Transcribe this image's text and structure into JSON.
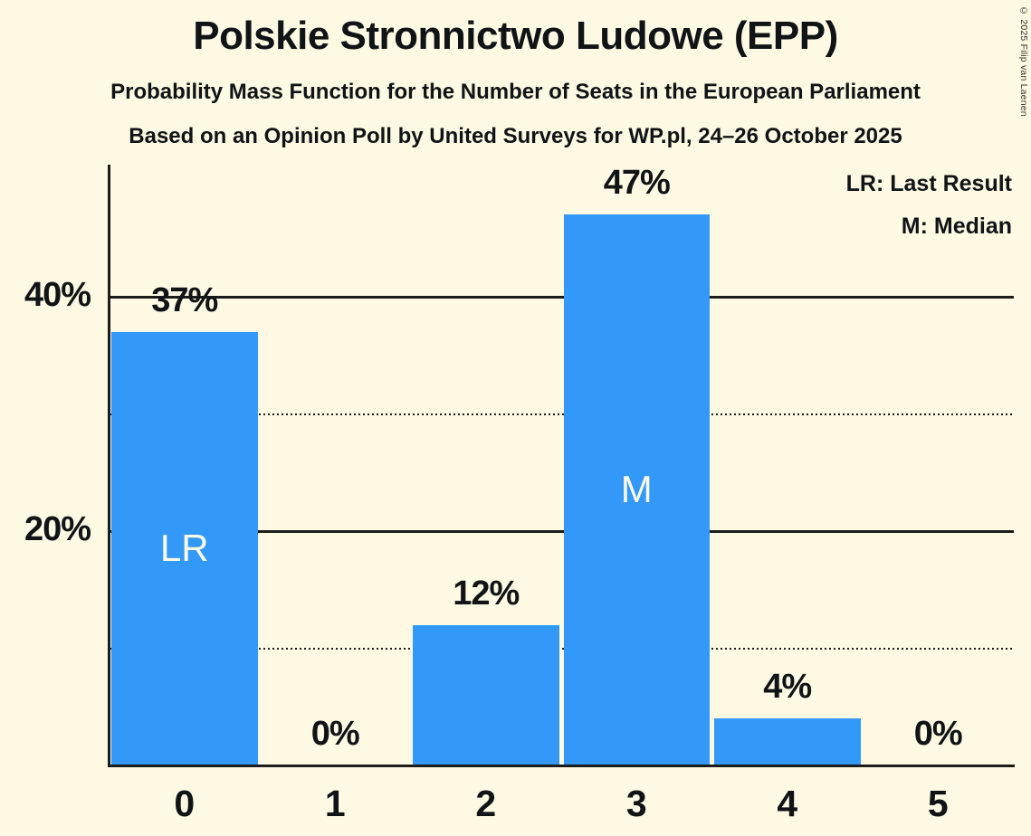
{
  "header": {
    "title": "Polskie Stronnictwo Ludowe (EPP)",
    "subtitle_function": "Probability Mass Function for the Number of Seats in the European Parliament",
    "subtitle_poll": "Based on an Opinion Poll by United Surveys for WP.pl, 24–26 October 2025"
  },
  "legend": {
    "lr": "LR: Last Result",
    "m": "M: Median"
  },
  "copyright": "© 2025 Filip van Laenen",
  "colors": {
    "background": "#FDF9E3",
    "bar": "#3399F8",
    "text": "#111417",
    "bar_label": "#FDF9E3",
    "gridline": "#1c1c1c",
    "copyright_text": "#333333"
  },
  "chart_data": {
    "type": "bar",
    "title": "Polskie Stronnictwo Ludowe (EPP)",
    "categories": [
      "0",
      "1",
      "2",
      "3",
      "4",
      "5"
    ],
    "values": [
      37,
      0,
      12,
      47,
      4,
      0
    ],
    "value_labels": [
      "37%",
      "0%",
      "12%",
      "47%",
      "4%",
      "0%"
    ],
    "bar_annotations": [
      {
        "index": 0,
        "label": "LR",
        "meaning": "Last Result"
      },
      {
        "index": 3,
        "label": "M",
        "meaning": "Median"
      }
    ],
    "xlabel": "",
    "ylabel": "",
    "ylim": [
      0,
      51
    ],
    "y_ticks": [
      {
        "value": 40,
        "label": "40%"
      },
      {
        "value": 20,
        "label": "20%"
      }
    ],
    "gridlines": [
      {
        "value": 40,
        "style": "solid"
      },
      {
        "value": 30,
        "style": "dotted"
      },
      {
        "value": 20,
        "style": "solid"
      },
      {
        "value": 10,
        "style": "dotted"
      }
    ],
    "legend_entries": [
      "LR: Last Result",
      "M: Median"
    ],
    "legend_position": "top-right",
    "grid": true
  }
}
